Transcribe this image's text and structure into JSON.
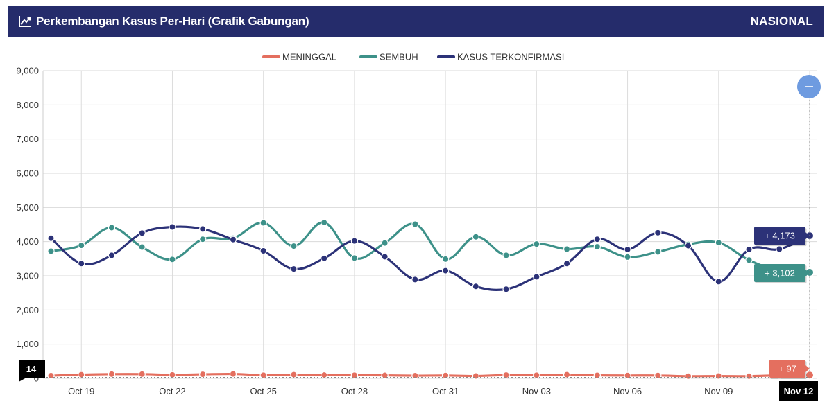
{
  "header": {
    "title": "Perkembangan Kasus Per-Hari (Grafik Gabungan)",
    "region": "NASIONAL",
    "icon": "line-chart-icon"
  },
  "colors": {
    "header_bg": "#252c6b",
    "meninggal": "#e46f5f",
    "sembuh": "#3d9189",
    "kasus": "#2c3278",
    "zoom_button": "#6e9be0",
    "crosshair_label": "#000000"
  },
  "zoom_button": {
    "icon": "minus-icon",
    "label": "–"
  },
  "crosshair": {
    "x_label": "Nov 12",
    "y_label": "14"
  },
  "chart_data": {
    "type": "line",
    "x_tick_labels": [
      "Oct 19",
      "Oct 22",
      "Oct 25",
      "Oct 28",
      "Oct 31",
      "Nov 03",
      "Nov 06",
      "Nov 09",
      "Nov 12"
    ],
    "y_tick_labels": [
      "0",
      "1,000",
      "2,000",
      "3,000",
      "4,000",
      "5,000",
      "6,000",
      "7,000",
      "8,000",
      "9,000"
    ],
    "ylim": [
      0,
      9000
    ],
    "grid": true,
    "legend_position": "top-center",
    "x": [
      "Oct 18",
      "Oct 19",
      "Oct 20",
      "Oct 21",
      "Oct 22",
      "Oct 23",
      "Oct 24",
      "Oct 25",
      "Oct 26",
      "Oct 27",
      "Oct 28",
      "Oct 29",
      "Oct 30",
      "Oct 31",
      "Nov 01",
      "Nov 02",
      "Nov 03",
      "Nov 04",
      "Nov 05",
      "Nov 06",
      "Nov 07",
      "Nov 08",
      "Nov 09",
      "Nov 10",
      "Nov 11",
      "Nov 12"
    ],
    "series": [
      {
        "name": "MENINGGAL",
        "color": "#e46f5f",
        "values": [
          80,
          110,
          125,
          125,
          105,
          120,
          130,
          95,
          110,
          100,
          95,
          90,
          80,
          85,
          70,
          100,
          95,
          110,
          90,
          85,
          85,
          65,
          70,
          65,
          90,
          97
        ],
        "last_label": "+ 97"
      },
      {
        "name": "SEMBUH",
        "color": "#3d9189",
        "values": [
          3720,
          3890,
          4410,
          3840,
          3480,
          4070,
          4100,
          4550,
          3870,
          4560,
          3520,
          3960,
          4510,
          3490,
          4140,
          3600,
          3930,
          3780,
          3850,
          3550,
          3700,
          3920,
          3970,
          3460,
          3150,
          3102
        ],
        "last_label": "+ 3,102"
      },
      {
        "name": "KASUS TERKONFIRMASI",
        "color": "#2c3278",
        "values": [
          4100,
          3360,
          3600,
          4250,
          4430,
          4370,
          4060,
          3730,
          3200,
          3510,
          4020,
          3560,
          2890,
          3150,
          2690,
          2610,
          2970,
          3360,
          4070,
          3770,
          4260,
          3880,
          2830,
          3770,
          3780,
          4173
        ],
        "last_label": "+ 4,173"
      }
    ]
  }
}
